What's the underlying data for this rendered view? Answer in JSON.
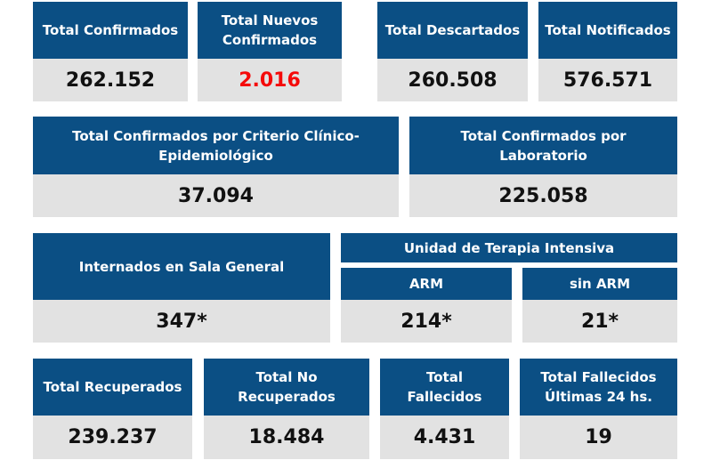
{
  "colors": {
    "header_bg": "#0b4f84",
    "value_bg": "#e2e2e2",
    "highlight": "#f50a0a"
  },
  "row1": [
    {
      "label": "Total Confirmados",
      "value": "262.152"
    },
    {
      "label": "Total Nuevos Confirmados",
      "value": "2.016"
    },
    {
      "label": "Total Descartados",
      "value": "260.508"
    },
    {
      "label": "Total Notificados",
      "value": "576.571"
    }
  ],
  "row2": [
    {
      "label": "Total Confirmados por Criterio Clínico-Epidemiológico",
      "value": "37.094"
    },
    {
      "label": "Total Confirmados por Laboratorio",
      "value": "225.058"
    }
  ],
  "row3": {
    "sala_general": {
      "label": "Internados en Sala General",
      "value": "347*"
    },
    "uti_title": "Unidad de Terapia Intensiva",
    "arm": {
      "label": "ARM",
      "value": "214*"
    },
    "sin_arm": {
      "label": "sin ARM",
      "value": "21*"
    }
  },
  "row4": [
    {
      "label": "Total Recuperados",
      "value": "239.237"
    },
    {
      "label": "Total No Recuperados",
      "value": "18.484"
    },
    {
      "label": "Total Fallecidos",
      "value": "4.431"
    },
    {
      "label": "Total Fallecidos Últimas 24 hs.",
      "value": "19"
    }
  ]
}
